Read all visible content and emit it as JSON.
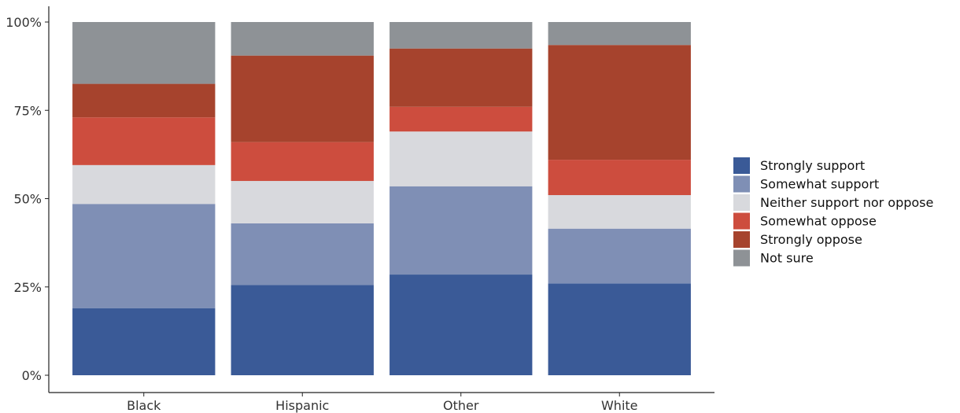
{
  "chart_data": {
    "type": "bar",
    "stacked": true,
    "percent_stacked": true,
    "categories": [
      "Black",
      "Hispanic",
      "Other",
      "White"
    ],
    "ylim": [
      0,
      100
    ],
    "yticks": [
      0,
      25,
      50,
      75,
      100
    ],
    "ytick_labels": [
      "0%",
      "25%",
      "50%",
      "75%",
      "100%"
    ],
    "grid": false,
    "legend_position": "right",
    "series": [
      {
        "name": "Strongly support",
        "color": "#3a5a97",
        "values": [
          19,
          25.5,
          28.5,
          26
        ]
      },
      {
        "name": "Somewhat support",
        "color": "#7f8fb5",
        "values": [
          29.5,
          17.5,
          25,
          15.5
        ]
      },
      {
        "name": "Neither support nor oppose",
        "color": "#d8d9dd",
        "values": [
          11,
          12,
          15.5,
          9.5
        ]
      },
      {
        "name": "Somewhat oppose",
        "color": "#cd4d3e",
        "values": [
          13.5,
          11,
          7,
          10
        ]
      },
      {
        "name": "Strongly oppose",
        "color": "#a6432d",
        "values": [
          9.5,
          24.5,
          16.5,
          32.5
        ]
      },
      {
        "name": "Not sure",
        "color": "#8e9296",
        "values": [
          17.5,
          9.5,
          7.5,
          6.5
        ]
      }
    ]
  }
}
